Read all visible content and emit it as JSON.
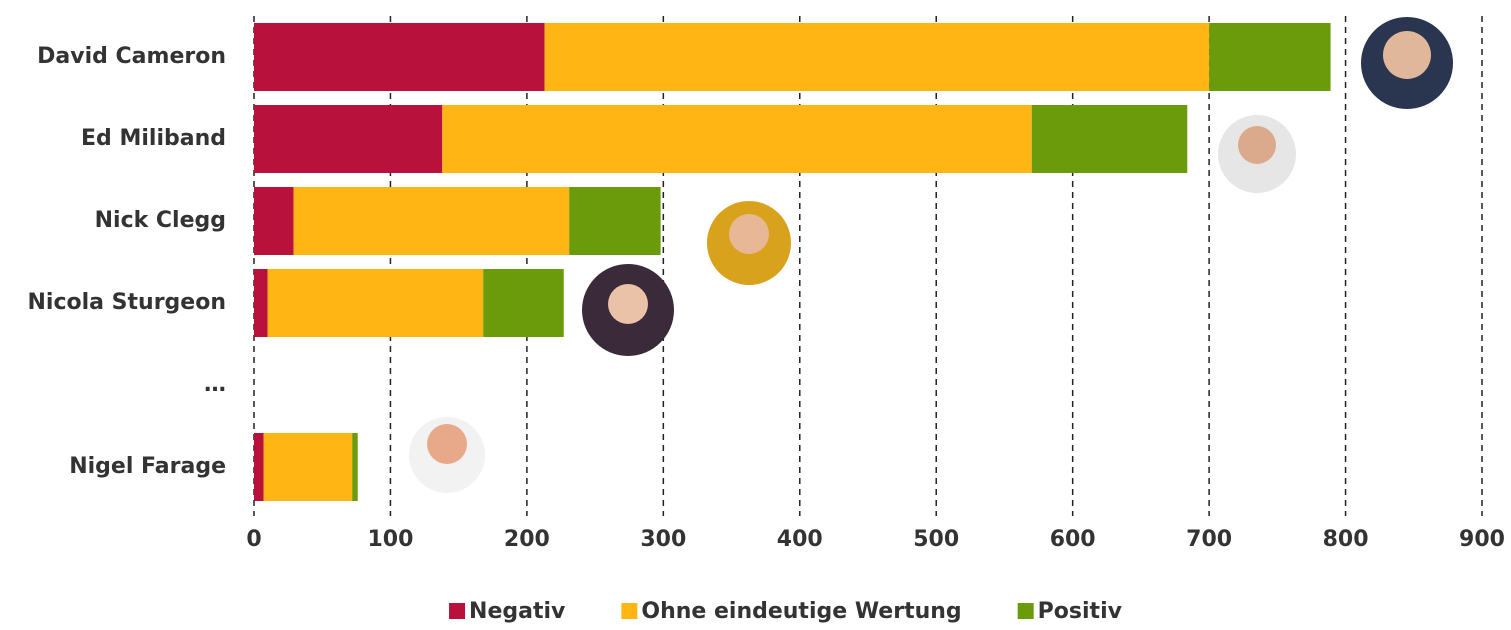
{
  "chart_data": {
    "type": "stacked_barh",
    "categories": [
      "David Cameron",
      "Ed Miliband",
      "Nick Clegg",
      "Nicola Sturgeon",
      "…",
      "Nigel Farage"
    ],
    "series": [
      {
        "name": "Negativ",
        "color": "#b8123c",
        "values": [
          213,
          138,
          29,
          10,
          null,
          7
        ]
      },
      {
        "name": "Ohne eindeutige Wertung",
        "color": "#ffb614",
        "values": [
          487,
          432,
          202,
          158,
          null,
          65
        ]
      },
      {
        "name": "Positiv",
        "color": "#6b9a0b",
        "values": [
          89,
          114,
          67,
          59,
          null,
          4
        ]
      }
    ],
    "xlim": [
      0,
      900
    ],
    "xticks": [
      0,
      100,
      200,
      300,
      400,
      500,
      600,
      700,
      800,
      900
    ],
    "grid": true
  }
}
